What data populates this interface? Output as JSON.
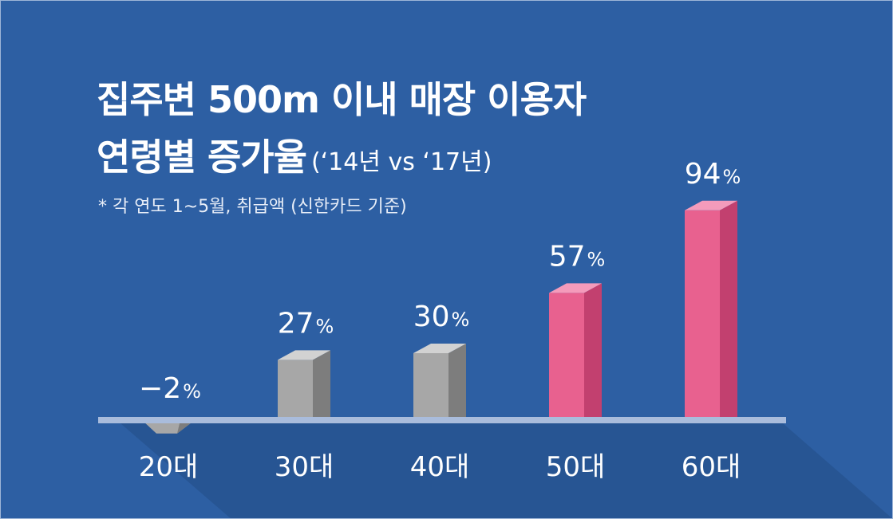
{
  "chart_data": {
    "type": "bar",
    "title_line_1": "집주변 500m 이내 매장 이용자",
    "title_line_2": "연령별 증가율",
    "subtitle": "(‘14년 vs ‘17년)",
    "footnote": "* 각 연도 1~5월, 취급액 (신한카드 기준)",
    "categories": [
      "20대",
      "30대",
      "40대",
      "50대",
      "60대"
    ],
    "values": [
      -2,
      27,
      30,
      57,
      94
    ],
    "value_labels": [
      "−2",
      "27",
      "30",
      "57",
      "94"
    ],
    "unit": "%",
    "xlabel": "",
    "ylabel": "",
    "ylim": [
      -5,
      100
    ],
    "grid": false,
    "legend": "none"
  },
  "colors": {
    "background": "#2d5fa3",
    "baseline": "#a9bcdc",
    "gray_front": "#a7a7a7",
    "gray_side": "#7d7d7d",
    "gray_top": "#d2d2d2",
    "pink_front": "#e8618f",
    "pink_side": "#c2406f",
    "pink_top": "#f49bbb",
    "text": "#ffffff"
  }
}
